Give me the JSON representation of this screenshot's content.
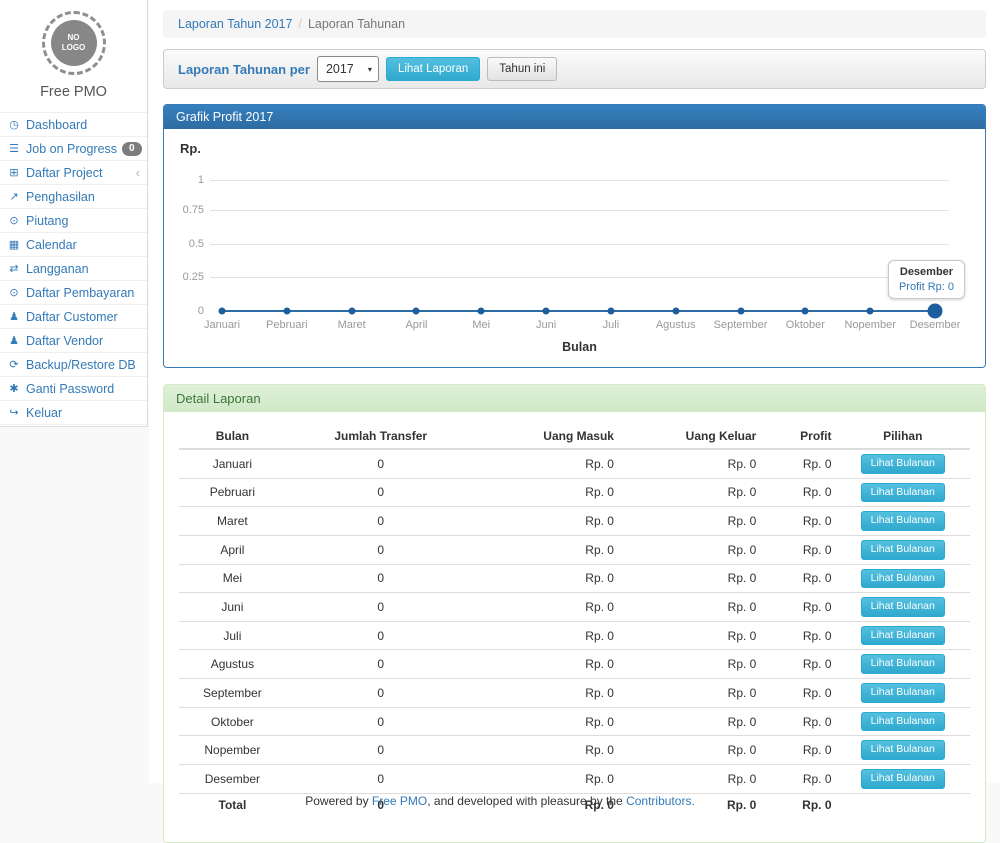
{
  "colors": {
    "accent": "#337ab7",
    "info_button": "#39b3d7",
    "success_header_bg": "#dff0d8",
    "success_header_text": "#3c763d",
    "badge_bg": "#7d7d7d"
  },
  "sidebar": {
    "logo_text": "NO\nLOGO",
    "brand": "Free PMO",
    "items": [
      {
        "label": "Dashboard",
        "icon": "dashboard-icon",
        "glyph": "◷"
      },
      {
        "label": "Job on Progress",
        "icon": "tasks-icon",
        "glyph": "☰",
        "badge": "0"
      },
      {
        "label": "Daftar Project",
        "icon": "table-icon",
        "glyph": "⊞",
        "chevron": "‹"
      },
      {
        "label": "Penghasilan",
        "icon": "line-chart-icon",
        "glyph": "↗"
      },
      {
        "label": "Piutang",
        "icon": "money-icon",
        "glyph": "⊙"
      },
      {
        "label": "Calendar",
        "icon": "calendar-icon",
        "glyph": "▦"
      },
      {
        "label": "Langganan",
        "icon": "retweet-icon",
        "glyph": "⇄"
      },
      {
        "label": "Daftar Pembayaran",
        "icon": "money-icon",
        "glyph": "⊙"
      },
      {
        "label": "Daftar Customer",
        "icon": "users-icon",
        "glyph": "♟"
      },
      {
        "label": "Daftar Vendor",
        "icon": "users-icon",
        "glyph": "♟"
      },
      {
        "label": "Backup/Restore DB",
        "icon": "refresh-icon",
        "glyph": "⟳"
      },
      {
        "label": "Ganti Password",
        "icon": "lock-icon",
        "glyph": "✱"
      },
      {
        "label": "Keluar",
        "icon": "sign-out-icon",
        "glyph": "↪"
      }
    ]
  },
  "breadcrumb": {
    "link": "Laporan Tahun 2017",
    "separator": "/",
    "current": "Laporan Tahunan"
  },
  "filter": {
    "label": "Laporan Tahunan per",
    "year": "2017",
    "caret": "▾",
    "submit_label": "Lihat Laporan",
    "this_year_label": "Tahun ini"
  },
  "chart": {
    "panel_title": "Grafik Profit 2017",
    "y_axis_label": "Rp.",
    "x_axis_label": "Bulan",
    "ticks": [
      "1",
      "0.75",
      "0.5",
      "0.25",
      "0"
    ],
    "tooltip": {
      "title": "Desember",
      "value": "Profit Rp: 0"
    }
  },
  "chart_data": {
    "type": "line",
    "title": "Grafik Profit 2017",
    "xlabel": "Bulan",
    "ylabel": "Rp.",
    "ylim": [
      0,
      1
    ],
    "yticks": [
      0,
      0.25,
      0.5,
      0.75,
      1
    ],
    "grid": true,
    "categories": [
      "Januari",
      "Pebruari",
      "Maret",
      "April",
      "Mei",
      "Juni",
      "Juli",
      "Agustus",
      "September",
      "Oktober",
      "Nopember",
      "Desember"
    ],
    "series": [
      {
        "name": "Profit",
        "values": [
          0,
          0,
          0,
          0,
          0,
          0,
          0,
          0,
          0,
          0,
          0,
          0
        ]
      }
    ],
    "highlighted_point": {
      "category": "Desember",
      "label": "Profit Rp: 0"
    }
  },
  "detail": {
    "panel_title": "Detail Laporan",
    "columns": [
      "Bulan",
      "Jumlah Transfer",
      "Uang Masuk",
      "Uang Keluar",
      "Profit",
      "Pilihan"
    ],
    "action_label": "Lihat Bulanan",
    "rows": [
      {
        "month": "Januari",
        "transfers": "0",
        "uang_masuk": "Rp. 0",
        "uang_keluar": "Rp. 0",
        "profit": "Rp. 0"
      },
      {
        "month": "Pebruari",
        "transfers": "0",
        "uang_masuk": "Rp. 0",
        "uang_keluar": "Rp. 0",
        "profit": "Rp. 0"
      },
      {
        "month": "Maret",
        "transfers": "0",
        "uang_masuk": "Rp. 0",
        "uang_keluar": "Rp. 0",
        "profit": "Rp. 0"
      },
      {
        "month": "April",
        "transfers": "0",
        "uang_masuk": "Rp. 0",
        "uang_keluar": "Rp. 0",
        "profit": "Rp. 0"
      },
      {
        "month": "Mei",
        "transfers": "0",
        "uang_masuk": "Rp. 0",
        "uang_keluar": "Rp. 0",
        "profit": "Rp. 0"
      },
      {
        "month": "Juni",
        "transfers": "0",
        "uang_masuk": "Rp. 0",
        "uang_keluar": "Rp. 0",
        "profit": "Rp. 0"
      },
      {
        "month": "Juli",
        "transfers": "0",
        "uang_masuk": "Rp. 0",
        "uang_keluar": "Rp. 0",
        "profit": "Rp. 0"
      },
      {
        "month": "Agustus",
        "transfers": "0",
        "uang_masuk": "Rp. 0",
        "uang_keluar": "Rp. 0",
        "profit": "Rp. 0"
      },
      {
        "month": "September",
        "transfers": "0",
        "uang_masuk": "Rp. 0",
        "uang_keluar": "Rp. 0",
        "profit": "Rp. 0"
      },
      {
        "month": "Oktober",
        "transfers": "0",
        "uang_masuk": "Rp. 0",
        "uang_keluar": "Rp. 0",
        "profit": "Rp. 0"
      },
      {
        "month": "Nopember",
        "transfers": "0",
        "uang_masuk": "Rp. 0",
        "uang_keluar": "Rp. 0",
        "profit": "Rp. 0"
      },
      {
        "month": "Desember",
        "transfers": "0",
        "uang_masuk": "Rp. 0",
        "uang_keluar": "Rp. 0",
        "profit": "Rp. 0"
      }
    ],
    "total": {
      "label": "Total",
      "transfers": "0",
      "uang_masuk": "Rp. 0",
      "uang_keluar": "Rp. 0",
      "profit": "Rp. 0"
    }
  },
  "footer": {
    "prefix": "Powered by ",
    "brand_link": "Free PMO",
    "middle": ", and developed with pleasure by the ",
    "contributors_link": "Contributors."
  }
}
